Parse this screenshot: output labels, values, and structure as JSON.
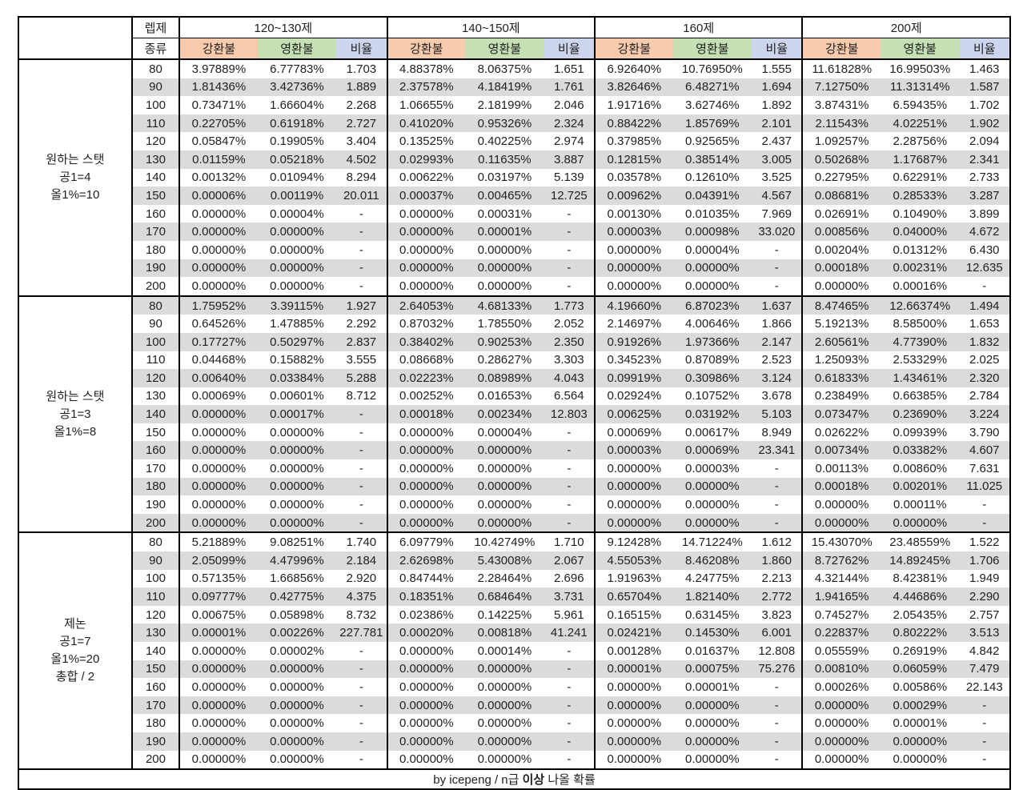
{
  "header": {
    "level_label": "렙제",
    "type_label": "종류",
    "level_groups": [
      "120~130제",
      "140~150제",
      "160제",
      "200제"
    ],
    "sub_columns": [
      "강환불",
      "영환불",
      "비율"
    ]
  },
  "colors": {
    "gang_header": "#F8CBAD",
    "yeong_header": "#C6E0B4",
    "ratio_header": "#CCD5EB",
    "stripe": "#DBDBDB"
  },
  "footer": {
    "prefix": "by icepeng / n급 ",
    "bold": "이상",
    "suffix": " 나올 확률"
  },
  "row_groups": [
    {
      "label_lines": [
        "원하는 스탯",
        "공1=4",
        "올1%=10"
      ],
      "rows": [
        {
          "level": "80",
          "values": [
            "3.97889%",
            "6.77783%",
            "1.703",
            "4.88378%",
            "8.06375%",
            "1.651",
            "6.92640%",
            "10.76950%",
            "1.555",
            "11.61828%",
            "16.99503%",
            "1.463"
          ]
        },
        {
          "level": "90",
          "values": [
            "1.81436%",
            "3.42736%",
            "1.889",
            "2.37578%",
            "4.18419%",
            "1.761",
            "3.82646%",
            "6.48271%",
            "1.694",
            "7.12750%",
            "11.31314%",
            "1.587"
          ]
        },
        {
          "level": "100",
          "values": [
            "0.73471%",
            "1.66604%",
            "2.268",
            "1.06655%",
            "2.18199%",
            "2.046",
            "1.91716%",
            "3.62746%",
            "1.892",
            "3.87431%",
            "6.59435%",
            "1.702"
          ]
        },
        {
          "level": "110",
          "values": [
            "0.22705%",
            "0.61918%",
            "2.727",
            "0.41020%",
            "0.95326%",
            "2.324",
            "0.88422%",
            "1.85769%",
            "2.101",
            "2.11543%",
            "4.02251%",
            "1.902"
          ]
        },
        {
          "level": "120",
          "values": [
            "0.05847%",
            "0.19905%",
            "3.404",
            "0.13525%",
            "0.40225%",
            "2.974",
            "0.37985%",
            "0.92565%",
            "2.437",
            "1.09257%",
            "2.28756%",
            "2.094"
          ]
        },
        {
          "level": "130",
          "values": [
            "0.01159%",
            "0.05218%",
            "4.502",
            "0.02993%",
            "0.11635%",
            "3.887",
            "0.12815%",
            "0.38514%",
            "3.005",
            "0.50268%",
            "1.17687%",
            "2.341"
          ]
        },
        {
          "level": "140",
          "values": [
            "0.00132%",
            "0.01094%",
            "8.294",
            "0.00622%",
            "0.03197%",
            "5.139",
            "0.03578%",
            "0.12610%",
            "3.525",
            "0.22795%",
            "0.62291%",
            "2.733"
          ]
        },
        {
          "level": "150",
          "values": [
            "0.00006%",
            "0.00119%",
            "20.011",
            "0.00037%",
            "0.00465%",
            "12.725",
            "0.00962%",
            "0.04391%",
            "4.567",
            "0.08681%",
            "0.28533%",
            "3.287"
          ]
        },
        {
          "level": "160",
          "values": [
            "0.00000%",
            "0.00004%",
            "-",
            "0.00000%",
            "0.00031%",
            "-",
            "0.00130%",
            "0.01035%",
            "7.969",
            "0.02691%",
            "0.10490%",
            "3.899"
          ]
        },
        {
          "level": "170",
          "values": [
            "0.00000%",
            "0.00000%",
            "-",
            "0.00000%",
            "0.00001%",
            "-",
            "0.00003%",
            "0.00098%",
            "33.020",
            "0.00856%",
            "0.04000%",
            "4.672"
          ]
        },
        {
          "level": "180",
          "values": [
            "0.00000%",
            "0.00000%",
            "-",
            "0.00000%",
            "0.00000%",
            "-",
            "0.00000%",
            "0.00004%",
            "-",
            "0.00204%",
            "0.01312%",
            "6.430"
          ]
        },
        {
          "level": "190",
          "values": [
            "0.00000%",
            "0.00000%",
            "-",
            "0.00000%",
            "0.00000%",
            "-",
            "0.00000%",
            "0.00000%",
            "-",
            "0.00018%",
            "0.00231%",
            "12.635"
          ]
        },
        {
          "level": "200",
          "values": [
            "0.00000%",
            "0.00000%",
            "-",
            "0.00000%",
            "0.00000%",
            "-",
            "0.00000%",
            "0.00000%",
            "-",
            "0.00000%",
            "0.00016%",
            "-"
          ]
        }
      ]
    },
    {
      "label_lines": [
        "원하는 스탯",
        "공1=3",
        "올1%=8"
      ],
      "rows": [
        {
          "level": "80",
          "values": [
            "1.75952%",
            "3.39115%",
            "1.927",
            "2.64053%",
            "4.68133%",
            "1.773",
            "4.19660%",
            "6.87023%",
            "1.637",
            "8.47465%",
            "12.66374%",
            "1.494"
          ]
        },
        {
          "level": "90",
          "values": [
            "0.64526%",
            "1.47885%",
            "2.292",
            "0.87032%",
            "1.78550%",
            "2.052",
            "2.14697%",
            "4.00646%",
            "1.866",
            "5.19213%",
            "8.58500%",
            "1.653"
          ]
        },
        {
          "level": "100",
          "values": [
            "0.17727%",
            "0.50297%",
            "2.837",
            "0.38402%",
            "0.90253%",
            "2.350",
            "0.91926%",
            "1.97366%",
            "2.147",
            "2.60561%",
            "4.77390%",
            "1.832"
          ]
        },
        {
          "level": "110",
          "values": [
            "0.04468%",
            "0.15882%",
            "3.555",
            "0.08668%",
            "0.28627%",
            "3.303",
            "0.34523%",
            "0.87089%",
            "2.523",
            "1.25093%",
            "2.53329%",
            "2.025"
          ]
        },
        {
          "level": "120",
          "values": [
            "0.00640%",
            "0.03384%",
            "5.288",
            "0.02223%",
            "0.08989%",
            "4.043",
            "0.09919%",
            "0.30986%",
            "3.124",
            "0.61833%",
            "1.43461%",
            "2.320"
          ]
        },
        {
          "level": "130",
          "values": [
            "0.00069%",
            "0.00601%",
            "8.712",
            "0.00252%",
            "0.01653%",
            "6.564",
            "0.02924%",
            "0.10752%",
            "3.678",
            "0.23849%",
            "0.66385%",
            "2.784"
          ]
        },
        {
          "level": "140",
          "values": [
            "0.00000%",
            "0.00017%",
            "-",
            "0.00018%",
            "0.00234%",
            "12.803",
            "0.00625%",
            "0.03192%",
            "5.103",
            "0.07347%",
            "0.23690%",
            "3.224"
          ]
        },
        {
          "level": "150",
          "values": [
            "0.00000%",
            "0.00000%",
            "-",
            "0.00000%",
            "0.00004%",
            "-",
            "0.00069%",
            "0.00617%",
            "8.949",
            "0.02622%",
            "0.09939%",
            "3.790"
          ]
        },
        {
          "level": "160",
          "values": [
            "0.00000%",
            "0.00000%",
            "-",
            "0.00000%",
            "0.00000%",
            "-",
            "0.00003%",
            "0.00069%",
            "23.341",
            "0.00734%",
            "0.03382%",
            "4.607"
          ]
        },
        {
          "level": "170",
          "values": [
            "0.00000%",
            "0.00000%",
            "-",
            "0.00000%",
            "0.00000%",
            "-",
            "0.00000%",
            "0.00003%",
            "-",
            "0.00113%",
            "0.00860%",
            "7.631"
          ]
        },
        {
          "level": "180",
          "values": [
            "0.00000%",
            "0.00000%",
            "-",
            "0.00000%",
            "0.00000%",
            "-",
            "0.00000%",
            "0.00000%",
            "-",
            "0.00018%",
            "0.00201%",
            "11.025"
          ]
        },
        {
          "level": "190",
          "values": [
            "0.00000%",
            "0.00000%",
            "-",
            "0.00000%",
            "0.00000%",
            "-",
            "0.00000%",
            "0.00000%",
            "-",
            "0.00000%",
            "0.00011%",
            "-"
          ]
        },
        {
          "level": "200",
          "values": [
            "0.00000%",
            "0.00000%",
            "-",
            "0.00000%",
            "0.00000%",
            "-",
            "0.00000%",
            "0.00000%",
            "-",
            "0.00000%",
            "0.00000%",
            "-"
          ]
        }
      ]
    },
    {
      "label_lines": [
        "제논",
        "공1=7",
        "올1%=20",
        "총합 / 2"
      ],
      "rows": [
        {
          "level": "80",
          "values": [
            "5.21889%",
            "9.08251%",
            "1.740",
            "6.09779%",
            "10.42749%",
            "1.710",
            "9.12428%",
            "14.71224%",
            "1.612",
            "15.43070%",
            "23.48559%",
            "1.522"
          ]
        },
        {
          "level": "90",
          "values": [
            "2.05099%",
            "4.47996%",
            "2.184",
            "2.62698%",
            "5.43008%",
            "2.067",
            "4.55053%",
            "8.46208%",
            "1.860",
            "8.72762%",
            "14.89245%",
            "1.706"
          ]
        },
        {
          "level": "100",
          "values": [
            "0.57135%",
            "1.66856%",
            "2.920",
            "0.84744%",
            "2.28464%",
            "2.696",
            "1.91963%",
            "4.24775%",
            "2.213",
            "4.32144%",
            "8.42381%",
            "1.949"
          ]
        },
        {
          "level": "110",
          "values": [
            "0.09777%",
            "0.42775%",
            "4.375",
            "0.18351%",
            "0.68464%",
            "3.731",
            "0.65704%",
            "1.82140%",
            "2.772",
            "1.94165%",
            "4.44686%",
            "2.290"
          ]
        },
        {
          "level": "120",
          "values": [
            "0.00675%",
            "0.05898%",
            "8.732",
            "0.02386%",
            "0.14225%",
            "5.961",
            "0.16515%",
            "0.63145%",
            "3.823",
            "0.74527%",
            "2.05435%",
            "2.757"
          ]
        },
        {
          "level": "130",
          "values": [
            "0.00001%",
            "0.00226%",
            "227.781",
            "0.00020%",
            "0.00818%",
            "41.241",
            "0.02421%",
            "0.14530%",
            "6.001",
            "0.22837%",
            "0.80222%",
            "3.513"
          ]
        },
        {
          "level": "140",
          "values": [
            "0.00000%",
            "0.00002%",
            "-",
            "0.00000%",
            "0.00014%",
            "-",
            "0.00128%",
            "0.01637%",
            "12.808",
            "0.05559%",
            "0.26919%",
            "4.842"
          ]
        },
        {
          "level": "150",
          "values": [
            "0.00000%",
            "0.00000%",
            "-",
            "0.00000%",
            "0.00000%",
            "-",
            "0.00001%",
            "0.00075%",
            "75.276",
            "0.00810%",
            "0.06059%",
            "7.479"
          ]
        },
        {
          "level": "160",
          "values": [
            "0.00000%",
            "0.00000%",
            "-",
            "0.00000%",
            "0.00000%",
            "-",
            "0.00000%",
            "0.00001%",
            "-",
            "0.00026%",
            "0.00586%",
            "22.143"
          ]
        },
        {
          "level": "170",
          "values": [
            "0.00000%",
            "0.00000%",
            "-",
            "0.00000%",
            "0.00000%",
            "-",
            "0.00000%",
            "0.00000%",
            "-",
            "0.00000%",
            "0.00029%",
            "-"
          ]
        },
        {
          "level": "180",
          "values": [
            "0.00000%",
            "0.00000%",
            "-",
            "0.00000%",
            "0.00000%",
            "-",
            "0.00000%",
            "0.00000%",
            "-",
            "0.00000%",
            "0.00001%",
            "-"
          ]
        },
        {
          "level": "190",
          "values": [
            "0.00000%",
            "0.00000%",
            "-",
            "0.00000%",
            "0.00000%",
            "-",
            "0.00000%",
            "0.00000%",
            "-",
            "0.00000%",
            "0.00000%",
            "-"
          ]
        },
        {
          "level": "200",
          "values": [
            "0.00000%",
            "0.00000%",
            "-",
            "0.00000%",
            "0.00000%",
            "-",
            "0.00000%",
            "0.00000%",
            "-",
            "0.00000%",
            "0.00000%",
            "-"
          ]
        }
      ]
    }
  ]
}
